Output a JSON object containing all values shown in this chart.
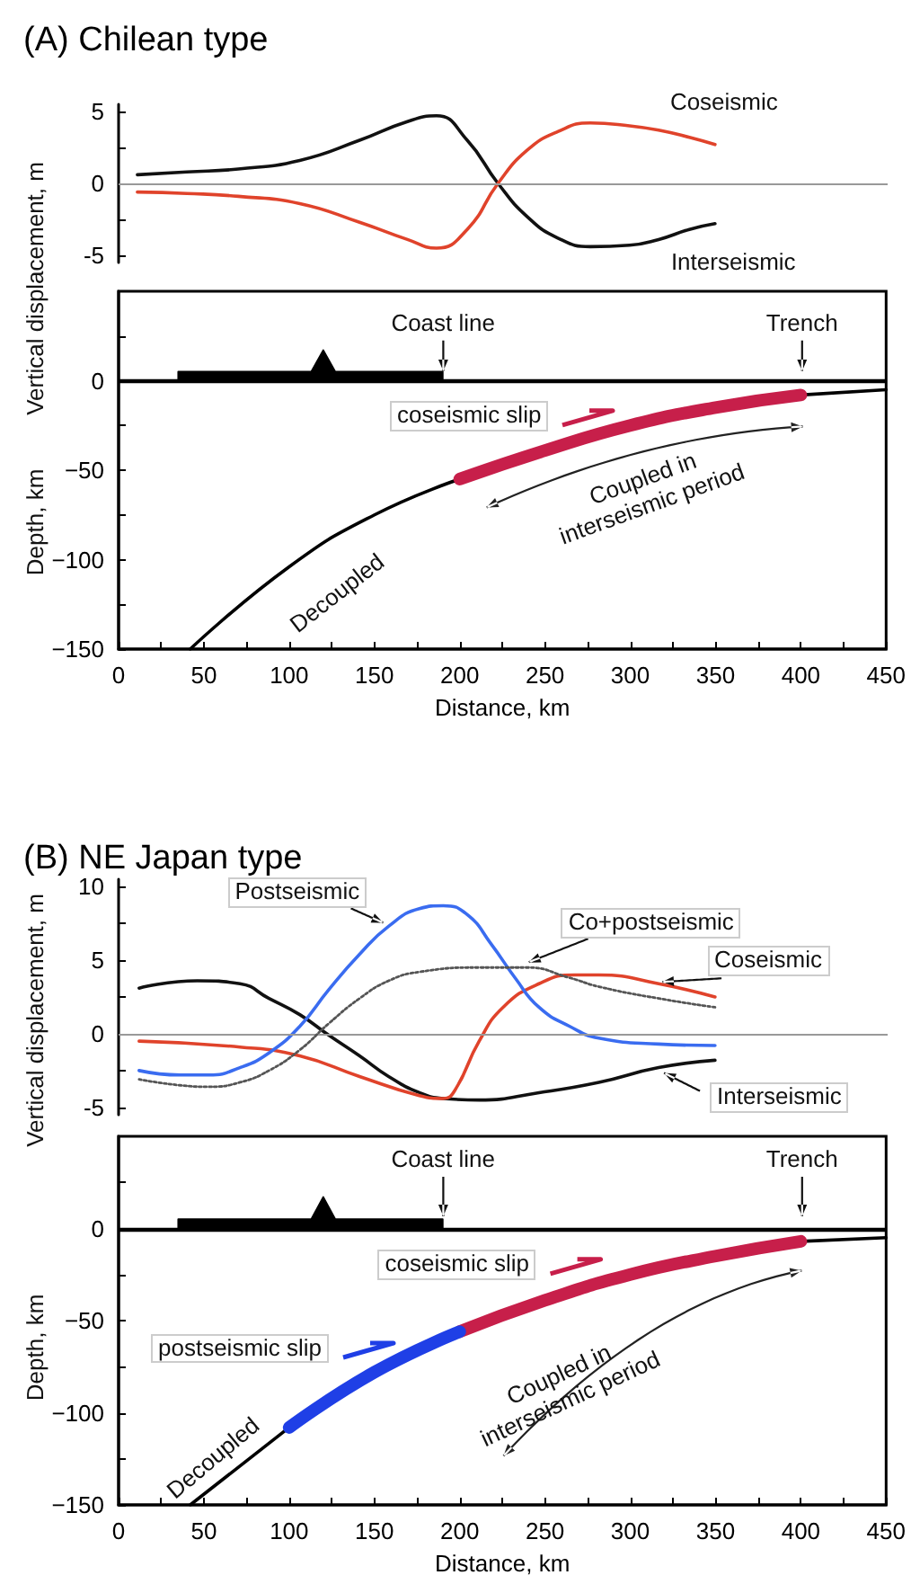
{
  "chart_data": [
    {
      "type": "line",
      "title": "(A) Chilean type",
      "ylabel": "Vertical displacement, m",
      "xlim": [
        0,
        450
      ],
      "ylim": [
        -5.5,
        5.5
      ],
      "yticks": [
        -5,
        {
          "value": -2.5,
          "label": null
        },
        0,
        {
          "value": 2.5,
          "label": null
        },
        5
      ],
      "tick_labels": "y",
      "ref_lines": [
        {
          "axis": "y",
          "value": 0,
          "color": "#999999"
        }
      ],
      "series": [
        {
          "name": "Interseismic",
          "color": "#111111",
          "x": [
            11,
            40,
            70,
            106,
            141,
            169,
            186,
            204,
            222,
            239,
            257,
            276,
            299,
            316,
            334,
            349
          ],
          "values": [
            0.6,
            0.8,
            1.0,
            1.6,
            3.0,
            4.3,
            4.7,
            3.0,
            0,
            -2.3,
            -3.8,
            -4.4,
            -4.3,
            -3.9,
            -3.2,
            -2.8
          ]
        },
        {
          "name": "Coseismic",
          "color": "#e0432b",
          "x": [
            11,
            40,
            70,
            106,
            141,
            169,
            186,
            204,
            222,
            239,
            257,
            276,
            299,
            316,
            334,
            349
          ],
          "values": [
            -0.6,
            -0.7,
            -0.9,
            -1.4,
            -2.7,
            -3.9,
            -4.5,
            -3.2,
            0,
            2.3,
            3.6,
            4.2,
            4.0,
            3.7,
            3.2,
            2.7
          ]
        }
      ]
    },
    {
      "type": "line",
      "xlabel": "Distance, km",
      "ylabel": "Depth, km",
      "xlim": [
        0,
        450
      ],
      "ylim": [
        -150,
        50
      ],
      "xticks": [
        0,
        {
          "value": 25,
          "label": null
        },
        50,
        {
          "value": 75,
          "label": null
        },
        100,
        {
          "value": 125,
          "label": null
        },
        150,
        {
          "value": 175,
          "label": null
        },
        200,
        {
          "value": 225,
          "label": null
        },
        250,
        {
          "value": 275,
          "label": null
        },
        300,
        {
          "value": 325,
          "label": null
        },
        350,
        {
          "value": 375,
          "label": null
        },
        400,
        {
          "value": 425,
          "label": null
        },
        450
      ],
      "yticks": [
        {
          "value": -150,
          "label": "−150"
        },
        {
          "value": -125,
          "label": null
        },
        {
          "value": -100,
          "label": "−100"
        },
        {
          "value": -75,
          "label": null
        },
        {
          "value": -50,
          "label": "−50"
        },
        {
          "value": -25,
          "label": null
        },
        0,
        {
          "value": 25,
          "label": null
        }
      ],
      "ref_lines": [
        {
          "axis": "y",
          "value": 0,
          "color": "#000000"
        }
      ],
      "series": [
        {
          "type": "area",
          "color": "#000000",
          "x": [
            35,
            35,
            113,
            120,
            127,
            190,
            190
          ],
          "values": [
            0,
            5,
            5,
            17,
            5,
            5,
            0
          ]
        },
        {
          "color": "#000000",
          "x": [
            42,
            100,
            150,
            200,
            250,
            300,
            350,
            400,
            450
          ],
          "values": [
            -150,
            -104,
            -75,
            -55,
            null,
            null,
            null,
            -8,
            -5
          ]
        },
        {
          "color": "#c71f4a",
          "x": [
            200,
            250,
            300,
            350,
            400
          ],
          "values": [
            -55,
            -39,
            -25,
            -15,
            -8
          ]
        }
      ],
      "annotations": [
        "Coast line",
        "Trench",
        "coseismic slip",
        "Coupled in interseismic period",
        "Decoupled"
      ]
    },
    {
      "type": "line",
      "title": "(B) NE Japan type",
      "ylabel": "Vertical displacement, m",
      "xlim": [
        0,
        450
      ],
      "ylim": [
        -5.5,
        10.5
      ],
      "yticks": [
        -5,
        {
          "value": -2.5,
          "label": null
        },
        0,
        {
          "value": 2.5,
          "label": null
        },
        5,
        {
          "value": 7.5,
          "label": null
        },
        10
      ],
      "tick_labels": "y",
      "ref_lines": [
        {
          "axis": "y",
          "value": 0,
          "color": "#999999"
        }
      ],
      "series": [
        {
          "name": "Interseismic",
          "color": "#111111",
          "x": [
            12,
            46,
            71,
            88,
            106,
            123,
            141,
            158,
            176,
            190,
            211,
            246,
            281,
            316,
            349
          ],
          "values": [
            3.1,
            3.6,
            3.4,
            2.4,
            1.3,
            -0.1,
            -1.5,
            -2.9,
            -4.0,
            -4.4,
            -4.5,
            -4.0,
            -3.3,
            -2.3,
            -1.8
          ]
        },
        {
          "name": "Coseismic",
          "color": "#e0432b",
          "x": [
            12,
            71,
            106,
            141,
            176,
            190,
            197,
            211,
            225,
            246,
            267,
            281,
            316,
            349
          ],
          "values": [
            -0.5,
            -0.9,
            -1.5,
            -2.9,
            -4.2,
            -4.4,
            -3.8,
            -0.5,
            1.8,
            3.4,
            4.0,
            4.0,
            3.4,
            2.5
          ]
        },
        {
          "name": "Postseismic",
          "color": "#3a6cf0",
          "x": [
            12,
            36,
            53,
            71,
            88,
            106,
            123,
            141,
            158,
            176,
            190,
            204,
            218,
            232,
            246,
            264,
            281,
            316,
            349
          ],
          "values": [
            -2.5,
            -2.8,
            -2.8,
            -2.3,
            -1.3,
            0.5,
            3.0,
            5.4,
            7.3,
            8.5,
            8.7,
            8.1,
            6.1,
            3.8,
            1.8,
            0.5,
            -0.3,
            -0.7,
            -0.8
          ]
        },
        {
          "name": "Co+postseismic",
          "color": "#555555",
          "line_style": "dotted",
          "x": [
            12,
            36,
            53,
            71,
            88,
            106,
            123,
            141,
            158,
            176,
            211,
            239,
            264,
            281,
            316,
            349
          ],
          "values": [
            -3.1,
            -3.5,
            -3.6,
            -3.3,
            -2.5,
            -1.1,
            0.7,
            2.4,
            3.6,
            4.2,
            4.5,
            4.5,
            3.8,
            3.2,
            2.4,
            1.8
          ]
        }
      ]
    },
    {
      "type": "line",
      "xlabel": "Distance, km",
      "ylabel": "Depth, km",
      "xlim": [
        0,
        450
      ],
      "ylim": [
        -150,
        50
      ],
      "xticks": [
        0,
        {
          "value": 25,
          "label": null
        },
        50,
        {
          "value": 75,
          "label": null
        },
        100,
        {
          "value": 125,
          "label": null
        },
        150,
        {
          "value": 175,
          "label": null
        },
        200,
        {
          "value": 225,
          "label": null
        },
        250,
        {
          "value": 275,
          "label": null
        },
        300,
        {
          "value": 325,
          "label": null
        },
        350,
        {
          "value": 375,
          "label": null
        },
        400,
        {
          "value": 425,
          "label": null
        },
        450
      ],
      "yticks": [
        {
          "value": -150,
          "label": "−150"
        },
        {
          "value": -125,
          "label": null
        },
        {
          "value": -100,
          "label": "−100"
        },
        {
          "value": -75,
          "label": null
        },
        {
          "value": -50,
          "label": "−50"
        },
        {
          "value": -25,
          "label": null
        },
        0,
        {
          "value": 25,
          "label": null
        }
      ],
      "ref_lines": [
        {
          "axis": "y",
          "value": 0,
          "color": "#000000"
        }
      ],
      "series": [
        {
          "type": "area",
          "color": "#000000",
          "x": [
            35,
            35,
            113,
            120,
            127,
            190,
            190
          ],
          "values": [
            0,
            5,
            5,
            17,
            5,
            5,
            0
          ]
        },
        {
          "color": "#000000",
          "x": [
            42,
            100,
            150,
            200,
            250,
            300,
            350,
            400,
            450
          ],
          "values": [
            -150,
            -108,
            null,
            null,
            null,
            null,
            null,
            -7,
            -5
          ]
        },
        {
          "color": "#c71f4a",
          "x": [
            200,
            250,
            300,
            350,
            400
          ],
          "values": [
            -56,
            -39,
            -25,
            -15,
            -7
          ]
        },
        {
          "color": "#1f3fe6",
          "x": [
            100,
            150,
            200
          ],
          "values": [
            -108,
            -78,
            -56
          ]
        }
      ],
      "annotations": [
        "Coast line",
        "Trench",
        "coseismic slip",
        "postseismic slip",
        "Coupled in interseismic period",
        "Decoupled"
      ]
    }
  ]
}
